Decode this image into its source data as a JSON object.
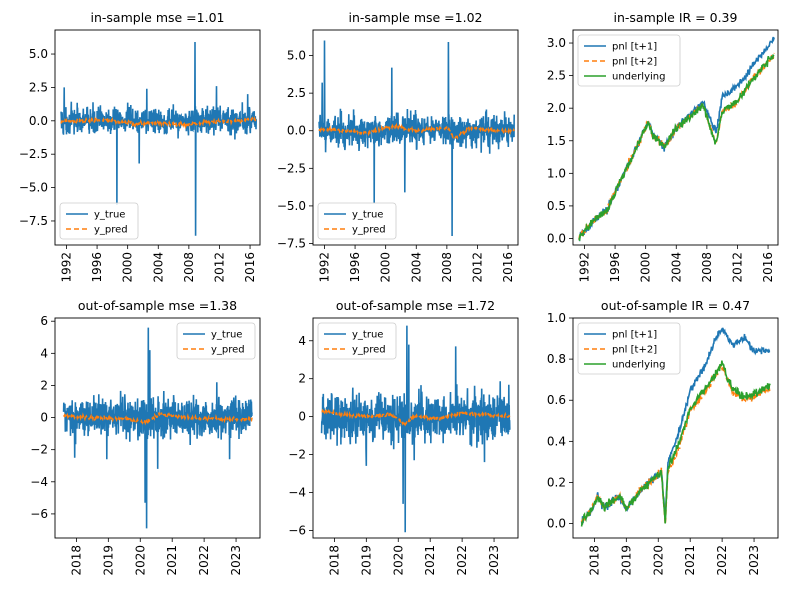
{
  "colors": {
    "y_true": "#1f77b4",
    "y_pred": "#ff7f0e",
    "pnl1": "#1f77b4",
    "pnl2": "#ff7f0e",
    "underlying": "#2ca02c"
  },
  "chart_data": [
    {
      "type": "line",
      "title": "in-sample mse =1.01",
      "xlim": [
        1990.5,
        2017.3
      ],
      "ylim": [
        -9.3,
        6.8
      ],
      "xticks": [
        1992,
        1996,
        2000,
        2004,
        2008,
        2012,
        2016
      ],
      "yticks": [
        5.0,
        2.5,
        0.0,
        -2.5,
        -5.0,
        -7.5
      ],
      "ytick_labels": [
        "5.0",
        "2.5",
        "0.0",
        "−2.5",
        "−5.0",
        "−7.5"
      ],
      "legend": {
        "position": "lower-left",
        "entries": [
          "y_true",
          "y_pred"
        ]
      },
      "series": [
        {
          "name": "y_true",
          "style": "solid",
          "x_range": [
            1991.3,
            2016.8
          ],
          "noise_sd": 0.7,
          "spikes": [
            [
              1998.6,
              -6.3
            ],
            [
              2008.8,
              5.9
            ],
            [
              2008.9,
              -8.6
            ],
            [
              2001.5,
              -3.2
            ],
            [
              2002.5,
              2.4
            ],
            [
              1991.7,
              2.5
            ],
            [
              2011.6,
              2.6
            ],
            [
              2015.7,
              2.0
            ]
          ]
        },
        {
          "name": "y_pred",
          "style": "dashed",
          "x_range": [
            1991.3,
            2016.8
          ],
          "points": [
            [
              1991.3,
              -0.05
            ],
            [
              1997,
              0.05
            ],
            [
              1999,
              -0.05
            ],
            [
              2001,
              -0.2
            ],
            [
              2004,
              -0.15
            ],
            [
              2008,
              -0.3
            ],
            [
              2010,
              -0.1
            ],
            [
              2014,
              0.0
            ],
            [
              2016.8,
              0.1
            ]
          ]
        }
      ]
    },
    {
      "type": "line",
      "title": "in-sample mse =1.02",
      "xlim": [
        1990.5,
        2017.3
      ],
      "ylim": [
        -7.6,
        6.7
      ],
      "xticks": [
        1992,
        1996,
        2000,
        2004,
        2008,
        2012,
        2016
      ],
      "yticks": [
        5.0,
        2.5,
        0.0,
        -2.5,
        -5.0,
        -7.5
      ],
      "ytick_labels": [
        "5.0",
        "2.5",
        "0.0",
        "−2.5",
        "−5.0",
        "−7.5"
      ],
      "legend": {
        "position": "lower-left",
        "entries": [
          "y_true",
          "y_pred"
        ]
      },
      "series": [
        {
          "name": "y_true",
          "style": "solid",
          "x_range": [
            1991.3,
            2016.8
          ],
          "noise_sd": 0.75,
          "spikes": [
            [
              1992.0,
              6.0
            ],
            [
              1991.7,
              3.2
            ],
            [
              1998.5,
              -4.8
            ],
            [
              2000.8,
              4.2
            ],
            [
              2008.2,
              5.9
            ],
            [
              2008.7,
              -7.0
            ],
            [
              2002.5,
              -4.1
            ]
          ]
        },
        {
          "name": "y_pred",
          "style": "dashed",
          "x_range": [
            1991.3,
            2016.8
          ],
          "points": [
            [
              1991.3,
              0.1
            ],
            [
              1994,
              0.0
            ],
            [
              1998,
              -0.1
            ],
            [
              2001,
              0.3
            ],
            [
              2004,
              0.0
            ],
            [
              2008,
              0.2
            ],
            [
              2009,
              -0.5
            ],
            [
              2011,
              0.2
            ],
            [
              2014,
              0.0
            ],
            [
              2016.8,
              0.0
            ]
          ]
        }
      ]
    },
    {
      "type": "line",
      "title": "in-sample IR = 0.39",
      "xlim": [
        1990.5,
        2017.3
      ],
      "ylim": [
        -0.1,
        3.2
      ],
      "xticks": [
        1992,
        1996,
        2000,
        2004,
        2008,
        2012,
        2016
      ],
      "yticks": [
        0.0,
        0.5,
        1.0,
        1.5,
        2.0,
        2.5,
        3.0
      ],
      "ytick_labels": [
        "0.0",
        "0.5",
        "1.0",
        "1.5",
        "2.0",
        "2.5",
        "3.0"
      ],
      "legend": {
        "position": "top-left",
        "entries": [
          "pnl [t+1]",
          "pnl [t+2]",
          "underlying"
        ]
      },
      "series": [
        {
          "name": "pnl [t+1]",
          "style": "solid",
          "points": [
            [
              1991.3,
              0.02
            ],
            [
              1993,
              0.25
            ],
            [
              1995,
              0.45
            ],
            [
              1997,
              0.95
            ],
            [
              1999,
              1.45
            ],
            [
              2000.3,
              1.8
            ],
            [
              2001,
              1.6
            ],
            [
              2002.5,
              1.4
            ],
            [
              2004,
              1.7
            ],
            [
              2007.5,
              2.1
            ],
            [
              2008.6,
              1.8
            ],
            [
              2009.2,
              1.65
            ],
            [
              2010,
              2.15
            ],
            [
              2012,
              2.35
            ],
            [
              2014,
              2.65
            ],
            [
              2016.8,
              3.07
            ]
          ]
        },
        {
          "name": "pnl [t+2]",
          "style": "dashed",
          "points": [
            [
              1991.3,
              0.02
            ],
            [
              1993,
              0.25
            ],
            [
              1995,
              0.45
            ],
            [
              1997,
              0.95
            ],
            [
              1999,
              1.45
            ],
            [
              2000.3,
              1.78
            ],
            [
              2001,
              1.58
            ],
            [
              2002.5,
              1.4
            ],
            [
              2004,
              1.68
            ],
            [
              2007.5,
              2.05
            ],
            [
              2008.6,
              1.65
            ],
            [
              2009.2,
              1.45
            ],
            [
              2010,
              1.95
            ],
            [
              2012,
              2.1
            ],
            [
              2014,
              2.45
            ],
            [
              2016.8,
              2.82
            ]
          ]
        },
        {
          "name": "underlying",
          "style": "solid",
          "points": [
            [
              1991.3,
              0.02
            ],
            [
              1993,
              0.25
            ],
            [
              1995,
              0.45
            ],
            [
              1997,
              0.95
            ],
            [
              1999,
              1.45
            ],
            [
              2000.3,
              1.78
            ],
            [
              2001,
              1.58
            ],
            [
              2002.5,
              1.4
            ],
            [
              2004,
              1.68
            ],
            [
              2007.5,
              2.05
            ],
            [
              2008.6,
              1.65
            ],
            [
              2009.2,
              1.45
            ],
            [
              2010,
              1.95
            ],
            [
              2012,
              2.1
            ],
            [
              2014,
              2.45
            ],
            [
              2016.8,
              2.82
            ]
          ]
        }
      ]
    },
    {
      "type": "line",
      "title": "out-of-sample mse =1.38",
      "xlim": [
        2017.33,
        2023.75
      ],
      "ylim": [
        -7.5,
        6.2
      ],
      "xticks": [
        2018,
        2019,
        2020,
        2021,
        2022,
        2023
      ],
      "yticks": [
        6,
        4,
        2,
        0,
        -2,
        -4,
        -6
      ],
      "ytick_labels": [
        "6",
        "4",
        "2",
        "0",
        "−2",
        "−4",
        "−6"
      ],
      "legend": {
        "position": "top-right",
        "entries": [
          "y_true",
          "y_pred"
        ]
      },
      "series": [
        {
          "name": "y_true",
          "style": "solid",
          "x_range": [
            2017.6,
            2023.5
          ],
          "noise_sd": 0.85,
          "spikes": [
            [
              2020.15,
              -5.3
            ],
            [
              2020.2,
              -6.9
            ],
            [
              2020.25,
              5.6
            ],
            [
              2020.3,
              4.2
            ],
            [
              2020.55,
              -3.2
            ],
            [
              2017.95,
              -2.5
            ],
            [
              2018.95,
              -2.6
            ],
            [
              2022.4,
              2.2
            ],
            [
              2022.8,
              -2.6
            ]
          ]
        },
        {
          "name": "y_pred",
          "style": "dashed",
          "x_range": [
            2017.6,
            2023.5
          ],
          "points": [
            [
              2017.6,
              0.1
            ],
            [
              2018.5,
              0.0
            ],
            [
              2019.5,
              -0.1
            ],
            [
              2020.2,
              -0.3
            ],
            [
              2020.6,
              0.2
            ],
            [
              2021.5,
              0.0
            ],
            [
              2022.5,
              -0.1
            ],
            [
              2023.5,
              -0.1
            ]
          ]
        }
      ]
    },
    {
      "type": "line",
      "title": "out-of-sample mse =1.72",
      "xlim": [
        2017.33,
        2023.75
      ],
      "ylim": [
        -6.4,
        5.2
      ],
      "xticks": [
        2018,
        2019,
        2020,
        2021,
        2022,
        2023
      ],
      "yticks": [
        4,
        2,
        0,
        -2,
        -4,
        -6
      ],
      "ytick_labels": [
        "4",
        "2",
        "0",
        "−2",
        "−4",
        "−6"
      ],
      "legend": {
        "position": "top-left",
        "entries": [
          "y_true",
          "y_pred"
        ]
      },
      "series": [
        {
          "name": "y_true",
          "style": "solid",
          "x_range": [
            2017.6,
            2023.5
          ],
          "noise_sd": 0.9,
          "spikes": [
            [
              2020.15,
              -4.6
            ],
            [
              2020.22,
              -6.1
            ],
            [
              2020.27,
              4.8
            ],
            [
              2020.33,
              3.8
            ],
            [
              2020.5,
              -2.3
            ],
            [
              2021.8,
              3.7
            ],
            [
              2022.7,
              -2.4
            ],
            [
              2019.0,
              -2.6
            ],
            [
              2017.65,
              1.2
            ]
          ]
        },
        {
          "name": "y_pred",
          "style": "dashed",
          "x_range": [
            2017.6,
            2023.5
          ],
          "points": [
            [
              2017.6,
              0.3
            ],
            [
              2018.3,
              0.1
            ],
            [
              2019,
              0.0
            ],
            [
              2019.8,
              0.1
            ],
            [
              2020.2,
              -0.4
            ],
            [
              2020.5,
              0.0
            ],
            [
              2021.3,
              -0.1
            ],
            [
              2022,
              0.2
            ],
            [
              2022.8,
              0.1
            ],
            [
              2023.5,
              0.0
            ]
          ]
        }
      ]
    },
    {
      "type": "line",
      "title": "out-of-sample IR = 0.47",
      "xlim": [
        2017.33,
        2023.75
      ],
      "ylim": [
        -0.07,
        1.0
      ],
      "xticks": [
        2018,
        2019,
        2020,
        2021,
        2022,
        2023
      ],
      "yticks": [
        0.0,
        0.2,
        0.4,
        0.6,
        0.8,
        1.0
      ],
      "ytick_labels": [
        "0.0",
        "0.2",
        "0.4",
        "0.6",
        "0.8",
        "1.0"
      ],
      "legend": {
        "position": "top-left",
        "entries": [
          "pnl [t+1]",
          "pnl [t+2]",
          "underlying"
        ]
      },
      "series": [
        {
          "name": "pnl [t+1]",
          "style": "solid",
          "points": [
            [
              2017.6,
              0.01
            ],
            [
              2017.9,
              0.06
            ],
            [
              2018.1,
              0.13
            ],
            [
              2018.3,
              0.08
            ],
            [
              2018.8,
              0.13
            ],
            [
              2019.0,
              0.07
            ],
            [
              2019.5,
              0.17
            ],
            [
              2020.1,
              0.25
            ],
            [
              2020.22,
              0.02
            ],
            [
              2020.3,
              0.3
            ],
            [
              2020.6,
              0.42
            ],
            [
              2021.0,
              0.65
            ],
            [
              2021.5,
              0.78
            ],
            [
              2021.8,
              0.9
            ],
            [
              2022.0,
              0.95
            ],
            [
              2022.3,
              0.87
            ],
            [
              2022.7,
              0.9
            ],
            [
              2023.0,
              0.84
            ],
            [
              2023.5,
              0.84
            ]
          ]
        },
        {
          "name": "pnl [t+2]",
          "style": "dashed",
          "points": [
            [
              2017.6,
              0.01
            ],
            [
              2017.9,
              0.06
            ],
            [
              2018.1,
              0.13
            ],
            [
              2018.3,
              0.08
            ],
            [
              2018.8,
              0.13
            ],
            [
              2019.0,
              0.07
            ],
            [
              2019.5,
              0.17
            ],
            [
              2020.1,
              0.25
            ],
            [
              2020.22,
              -0.02
            ],
            [
              2020.3,
              0.25
            ],
            [
              2020.6,
              0.35
            ],
            [
              2021.0,
              0.55
            ],
            [
              2021.5,
              0.65
            ],
            [
              2021.8,
              0.72
            ],
            [
              2022.0,
              0.77
            ],
            [
              2022.3,
              0.65
            ],
            [
              2022.7,
              0.6
            ],
            [
              2023.0,
              0.62
            ],
            [
              2023.5,
              0.66
            ]
          ]
        },
        {
          "name": "underlying",
          "style": "solid",
          "points": [
            [
              2017.6,
              0.01
            ],
            [
              2017.9,
              0.06
            ],
            [
              2018.1,
              0.13
            ],
            [
              2018.3,
              0.08
            ],
            [
              2018.8,
              0.13
            ],
            [
              2019.0,
              0.07
            ],
            [
              2019.5,
              0.17
            ],
            [
              2020.1,
              0.25
            ],
            [
              2020.22,
              0.0
            ],
            [
              2020.3,
              0.27
            ],
            [
              2020.6,
              0.37
            ],
            [
              2021.0,
              0.56
            ],
            [
              2021.5,
              0.66
            ],
            [
              2021.8,
              0.73
            ],
            [
              2022.0,
              0.78
            ],
            [
              2022.3,
              0.66
            ],
            [
              2022.7,
              0.61
            ],
            [
              2023.0,
              0.63
            ],
            [
              2023.5,
              0.67
            ]
          ]
        }
      ]
    }
  ]
}
